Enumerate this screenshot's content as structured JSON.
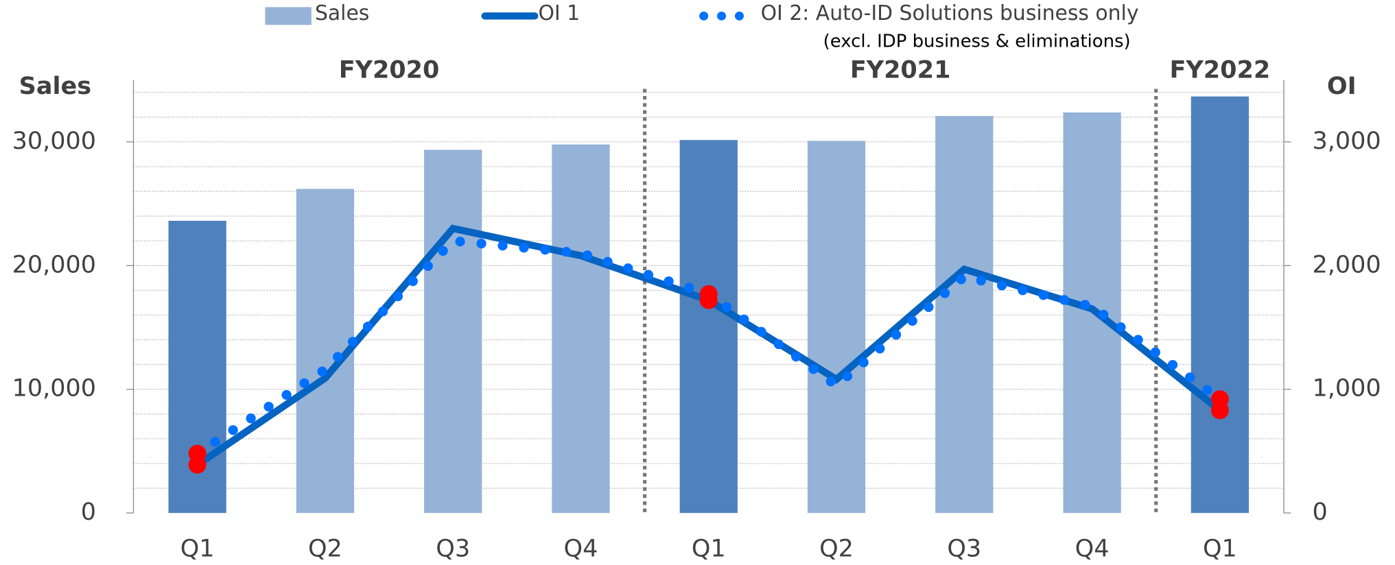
{
  "chart_data": {
    "type": "bar_line",
    "categories": [
      "Q1",
      "Q2",
      "Q3",
      "Q4",
      "Q1",
      "Q2",
      "Q3",
      "Q4",
      "Q1"
    ],
    "groups": [
      {
        "label": "FY2020",
        "start": 0,
        "end": 3
      },
      {
        "label": "FY2021",
        "start": 4,
        "end": 7
      },
      {
        "label": "FY2022",
        "start": 8,
        "end": 8
      }
    ],
    "y_label": "Sales",
    "y2_label": "OI",
    "ylim": [
      0,
      35000
    ],
    "yticks": [
      {
        "value": 0,
        "label": "0"
      },
      {
        "value": 10000,
        "label": "10,000"
      },
      {
        "value": 20000,
        "label": "20,000"
      },
      {
        "value": 30000,
        "label": "30,000"
      }
    ],
    "y2lim": [
      0,
      3500
    ],
    "y2ticks": [
      {
        "value": 0,
        "label": "0"
      },
      {
        "value": 1000,
        "label": "1,000"
      },
      {
        "value": 2000,
        "label": "2,000"
      },
      {
        "value": 3000,
        "label": "3,000"
      }
    ],
    "minor_grid_step": 2000,
    "highlight_points": [
      0,
      4,
      8
    ],
    "highlight_color": "#ff0000",
    "series": [
      {
        "name": "Sales",
        "type": "bar",
        "color": "#95b3d7",
        "colors": [
          "#4f81bd",
          "#95b3d7",
          "#95b3d7",
          "#95b3d7",
          "#4f81bd",
          "#95b3d7",
          "#95b3d7",
          "#95b3d7",
          "#4f81bd"
        ],
        "values": [
          23620,
          26200,
          29360,
          29790,
          30150,
          30080,
          32090,
          32380,
          33670
        ]
      },
      {
        "name": "OI 1",
        "type": "line",
        "axis": "y2",
        "color": "#0563c1",
        "style": "solid",
        "values": [
          390,
          1090,
          2300,
          2080,
          1720,
          1080,
          1970,
          1650,
          830
        ]
      },
      {
        "name": "OI 2: Auto-ID Solutions business only",
        "legend_note": "(excl. IDP business & eliminations)",
        "type": "line",
        "axis": "y2",
        "color": "#0070ff",
        "style": "dotted",
        "values": [
          480,
          1160,
          2200,
          2100,
          1770,
          1030,
          1910,
          1670,
          920
        ]
      }
    ]
  }
}
